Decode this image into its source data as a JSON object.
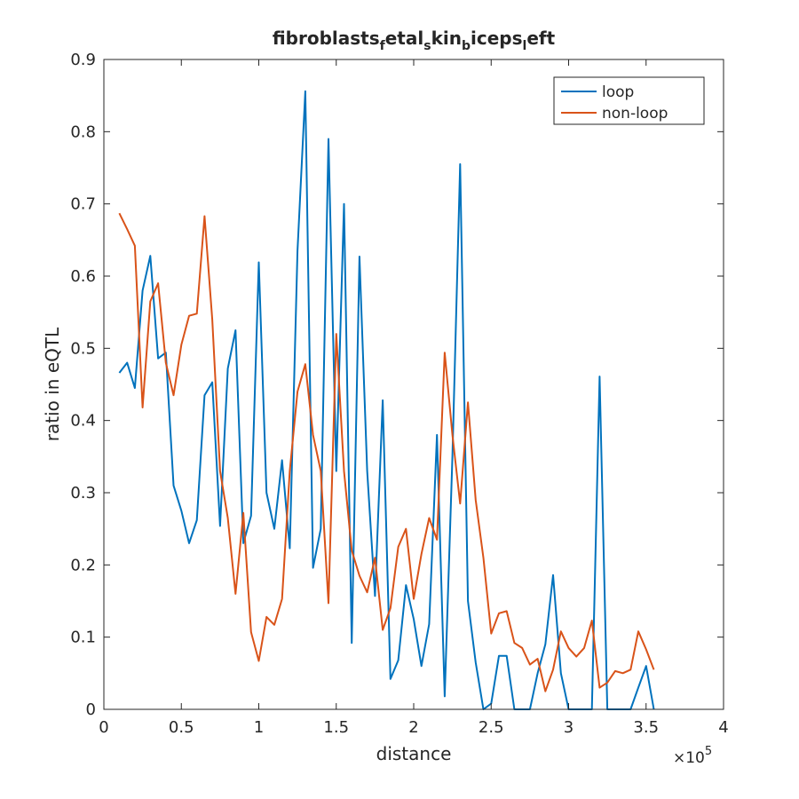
{
  "chart_data": {
    "type": "line",
    "title": "fibroblasts_fetal_skin_biceps_left",
    "xlabel": "distance",
    "ylabel": "ratio in eQTL",
    "x_exponent_label": "×10",
    "x_exponent": "5",
    "xlim": [
      0,
      4
    ],
    "ylim": [
      0,
      0.9
    ],
    "xticks": [
      0,
      0.5,
      1,
      1.5,
      2,
      2.5,
      3,
      3.5,
      4
    ],
    "xtick_labels": [
      "0",
      "0.5",
      "1",
      "1.5",
      "2",
      "2.5",
      "3",
      "3.5",
      "4"
    ],
    "yticks": [
      0,
      0.1,
      0.2,
      0.3,
      0.4,
      0.5,
      0.6,
      0.7,
      0.8,
      0.9
    ],
    "ytick_labels": [
      "0",
      "0.1",
      "0.2",
      "0.3",
      "0.4",
      "0.5",
      "0.6",
      "0.7",
      "0.8",
      "0.9"
    ],
    "grid": false,
    "legend_position": "top-right",
    "x": [
      0.1,
      0.15,
      0.2,
      0.25,
      0.3,
      0.35,
      0.4,
      0.45,
      0.5,
      0.55,
      0.6,
      0.65,
      0.7,
      0.75,
      0.8,
      0.85,
      0.9,
      0.95,
      1.0,
      1.05,
      1.1,
      1.15,
      1.2,
      1.25,
      1.3,
      1.35,
      1.4,
      1.45,
      1.5,
      1.55,
      1.6,
      1.65,
      1.7,
      1.75,
      1.8,
      1.85,
      1.9,
      1.95,
      2.0,
      2.05,
      2.1,
      2.15,
      2.2,
      2.25,
      2.3,
      2.35,
      2.4,
      2.45,
      2.5,
      2.55,
      2.6,
      2.65,
      2.7,
      2.75,
      2.8,
      2.85,
      2.9,
      2.95,
      3.0,
      3.05,
      3.1,
      3.15,
      3.2,
      3.25,
      3.3,
      3.35,
      3.4,
      3.45,
      3.5,
      3.55
    ],
    "series": [
      {
        "name": "loop",
        "color": "#0072bd",
        "values": [
          0.466,
          0.48,
          0.445,
          0.58,
          0.628,
          0.486,
          0.494,
          0.31,
          0.275,
          0.23,
          0.262,
          0.435,
          0.453,
          0.254,
          0.472,
          0.525,
          0.23,
          0.268,
          0.619,
          0.3,
          0.25,
          0.345,
          0.223,
          0.635,
          0.856,
          0.196,
          0.25,
          0.79,
          0.33,
          0.7,
          0.092,
          0.627,
          0.33,
          0.157,
          0.428,
          0.042,
          0.068,
          0.172,
          0.125,
          0.06,
          0.118,
          0.38,
          0.018,
          0.35,
          0.755,
          0.15,
          0.065,
          0,
          0.008,
          0.074,
          0.074,
          0,
          0,
          0,
          0.05,
          0.09,
          0.186,
          0.05,
          0,
          0,
          0,
          0,
          0.461,
          0,
          0,
          0,
          0,
          0.03,
          0.06,
          0
        ]
      },
      {
        "name": "non-loop",
        "color": "#d95319",
        "values": [
          0.687,
          0.665,
          0.642,
          0.418,
          0.565,
          0.59,
          0.48,
          0.435,
          0.505,
          0.545,
          0.548,
          0.683,
          0.54,
          0.33,
          0.265,
          0.16,
          0.272,
          0.107,
          0.067,
          0.128,
          0.117,
          0.153,
          0.33,
          0.44,
          0.478,
          0.38,
          0.33,
          0.147,
          0.52,
          0.33,
          0.22,
          0.185,
          0.162,
          0.21,
          0.11,
          0.14,
          0.225,
          0.25,
          0.153,
          0.215,
          0.265,
          0.235,
          0.494,
          0.38,
          0.285,
          0.425,
          0.29,
          0.21,
          0.105,
          0.133,
          0.136,
          0.092,
          0.085,
          0.062,
          0.07,
          0.025,
          0.055,
          0.108,
          0.085,
          0.073,
          0.085,
          0.123,
          0.03,
          0.037,
          0.053,
          0.05,
          0.055,
          0.108,
          0.083,
          0.055
        ]
      }
    ]
  }
}
